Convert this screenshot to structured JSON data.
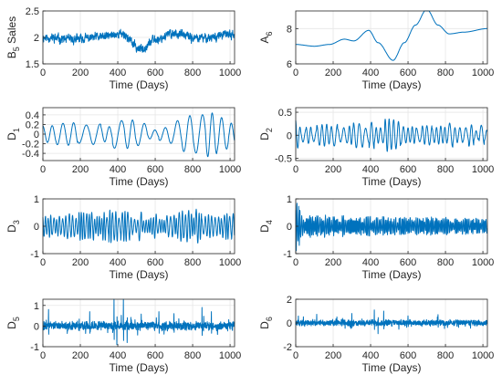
{
  "colors": {
    "line": "#0072BD",
    "axis": "#262626",
    "grid": "#e6e6e6"
  },
  "chart_data": [
    {
      "type": "line",
      "id": "b5",
      "ylabel": {
        "main": "B",
        "sub": "5",
        "rest": " Sales"
      },
      "xlabel": "Time (Days)",
      "xlim": [
        0,
        1024
      ],
      "ylim": [
        1.5,
        2.5
      ],
      "xticks": [
        0,
        200,
        400,
        600,
        800,
        1000
      ],
      "yticks": [
        1.5,
        2,
        2.5
      ],
      "grid": true,
      "series": [
        {
          "kind": "noisy-trend",
          "base": 2.0,
          "knots": [
            [
              0,
              2.0
            ],
            [
              150,
              1.96
            ],
            [
              300,
              2.0
            ],
            [
              420,
              2.07
            ],
            [
              520,
              1.78
            ],
            [
              600,
              1.96
            ],
            [
              700,
              2.08
            ],
            [
              820,
              1.98
            ],
            [
              1024,
              2.06
            ]
          ],
          "noise": 0.07,
          "seed": 11
        }
      ]
    },
    {
      "type": "line",
      "id": "a6",
      "ylabel": {
        "main": "A",
        "sub": "6",
        "rest": ""
      },
      "xlabel": "Time (Days)",
      "xlim": [
        0,
        1024
      ],
      "ylim": [
        6,
        9
      ],
      "xticks": [
        0,
        200,
        400,
        600,
        800,
        1000
      ],
      "yticks": [
        6,
        8
      ],
      "grid": true,
      "series": [
        {
          "kind": "smooth",
          "knots": [
            [
              0,
              7.1
            ],
            [
              100,
              7.0
            ],
            [
              180,
              7.1
            ],
            [
              260,
              7.4
            ],
            [
              310,
              7.3
            ],
            [
              390,
              7.9
            ],
            [
              440,
              7.2
            ],
            [
              520,
              6.2
            ],
            [
              580,
              7.2
            ],
            [
              640,
              8.2
            ],
            [
              700,
              9.1
            ],
            [
              760,
              8.2
            ],
            [
              820,
              7.7
            ],
            [
              900,
              7.8
            ],
            [
              1024,
              8.0
            ]
          ]
        }
      ]
    },
    {
      "type": "line",
      "id": "d1",
      "ylabel": {
        "main": "D",
        "sub": "1",
        "rest": ""
      },
      "xlabel": "Time (Days)",
      "xlim": [
        0,
        1024
      ],
      "ylim": [
        -0.55,
        0.55
      ],
      "xticks": [
        0,
        200,
        400,
        600,
        800,
        1000
      ],
      "yticks": [
        -0.4,
        -0.2,
        0,
        0.2,
        0.4
      ],
      "grid": true,
      "series": [
        {
          "kind": "oscillation",
          "period": 62,
          "amp": 0.32,
          "seed": 21,
          "envelope": [
            [
              0,
              0.9
            ],
            [
              200,
              1.0
            ],
            [
              500,
              0.8
            ],
            [
              640,
              0.5
            ],
            [
              760,
              1.3
            ],
            [
              840,
              1.6
            ],
            [
              1024,
              1.0
            ]
          ]
        }
      ]
    },
    {
      "type": "line",
      "id": "d2",
      "ylabel": {
        "main": "D",
        "sub": "2",
        "rest": ""
      },
      "xlabel": "Time (Days)",
      "xlim": [
        0,
        1024
      ],
      "ylim": [
        -0.55,
        0.6
      ],
      "xticks": [
        0,
        200,
        400,
        600,
        800,
        1000
      ],
      "yticks": [
        -0.5,
        0,
        0.5
      ],
      "grid": true,
      "series": [
        {
          "kind": "oscillation",
          "period": 28,
          "amp": 0.2,
          "seed": 33,
          "envelope": [
            [
              0,
              2.2
            ],
            [
              30,
              1.0
            ],
            [
              300,
              1.2
            ],
            [
              500,
              1.6
            ],
            [
              540,
              2.0
            ],
            [
              700,
              1.2
            ],
            [
              800,
              1.6
            ],
            [
              1024,
              0.9
            ]
          ]
        }
      ]
    },
    {
      "type": "line",
      "id": "d3",
      "ylabel": {
        "main": "D",
        "sub": "3",
        "rest": ""
      },
      "xlabel": "Time (Days)",
      "xlim": [
        0,
        1024
      ],
      "ylim": [
        -1,
        1
      ],
      "xticks": [
        0,
        200,
        400,
        600,
        800,
        1000
      ],
      "yticks": [
        -1,
        0,
        1
      ],
      "grid": true,
      "series": [
        {
          "kind": "oscillation",
          "period": 16,
          "amp": 0.4,
          "seed": 45,
          "envelope": [
            [
              0,
              1.0
            ],
            [
              200,
              1.1
            ],
            [
              400,
              1.3
            ],
            [
              600,
              1.0
            ],
            [
              800,
              1.5
            ],
            [
              1024,
              1.0
            ]
          ]
        }
      ]
    },
    {
      "type": "line",
      "id": "d4",
      "ylabel": {
        "main": "D",
        "sub": "4",
        "rest": ""
      },
      "xlabel": "Time (Days)",
      "xlim": [
        0,
        1024
      ],
      "ylim": [
        -1,
        1
      ],
      "xticks": [
        0,
        200,
        400,
        600,
        800,
        1000
      ],
      "yticks": [
        -1,
        0,
        1
      ],
      "grid": true,
      "series": [
        {
          "kind": "oscillation",
          "period": 8,
          "amp": 0.3,
          "seed": 57,
          "envelope": [
            [
              0,
              2.8
            ],
            [
              40,
              1.2
            ],
            [
              300,
              1.1
            ],
            [
              500,
              1.0
            ],
            [
              1024,
              0.9
            ]
          ]
        }
      ]
    },
    {
      "type": "line",
      "id": "d5",
      "ylabel": {
        "main": "D",
        "sub": "5",
        "rest": ""
      },
      "xlabel": "Time (Days)",
      "xlim": [
        0,
        1024
      ],
      "ylim": [
        -1,
        1.3
      ],
      "xticks": [
        0,
        200,
        400,
        600,
        800,
        1000
      ],
      "yticks": [
        -1,
        0,
        1
      ],
      "grid": true,
      "series": [
        {
          "kind": "spiky",
          "amp": 0.18,
          "seed": 69,
          "spikes": [
            [
              30,
              0.8
            ],
            [
              250,
              0.7
            ],
            [
              380,
              1.3
            ],
            [
              395,
              -0.9
            ],
            [
              430,
              1.4
            ],
            [
              450,
              -0.8
            ],
            [
              620,
              0.7
            ],
            [
              700,
              0.6
            ],
            [
              850,
              0.9
            ],
            [
              900,
              0.7
            ]
          ]
        }
      ]
    },
    {
      "type": "line",
      "id": "d6",
      "ylabel": {
        "main": "D",
        "sub": "6",
        "rest": ""
      },
      "xlabel": "Time (Days)",
      "xlim": [
        0,
        1024
      ],
      "ylim": [
        -2,
        2
      ],
      "xticks": [
        0,
        200,
        400,
        600,
        800,
        1000
      ],
      "yticks": [
        -2,
        0,
        2
      ],
      "grid": true,
      "series": [
        {
          "kind": "spiky",
          "amp": 0.22,
          "seed": 81,
          "spikes": [
            [
              300,
              0.8
            ],
            [
              420,
              1.1
            ],
            [
              440,
              -0.9
            ],
            [
              470,
              1.0
            ],
            [
              600,
              0.6
            ],
            [
              760,
              0.7
            ]
          ]
        }
      ]
    }
  ]
}
